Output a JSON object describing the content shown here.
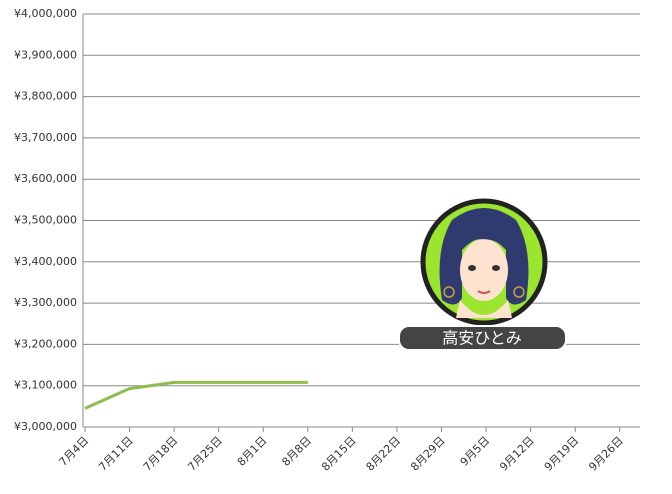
{
  "chart_data": {
    "type": "line",
    "categories": [
      "7月4日",
      "7月11日",
      "7月18日",
      "7月25日",
      "8月1日",
      "8月8日",
      "8月15日",
      "8月22日",
      "8月29日",
      "9月5日",
      "9月12日",
      "9月19日",
      "9月26日"
    ],
    "values": [
      3045000,
      3093000,
      3108000,
      3108000,
      3108000,
      3108000,
      null,
      null,
      null,
      null,
      null,
      null,
      null
    ],
    "color": "#8fbc4f",
    "ylim": [
      3000000,
      4000000
    ],
    "yticks": [
      {
        "value": 3000000,
        "label": "¥3,000,000"
      },
      {
        "value": 3100000,
        "label": "¥3,100,000"
      },
      {
        "value": 3200000,
        "label": "¥3,200,000"
      },
      {
        "value": 3300000,
        "label": "¥3,300,000"
      },
      {
        "value": 3400000,
        "label": "¥3,400,000"
      },
      {
        "value": 3500000,
        "label": "¥3,500,000"
      },
      {
        "value": 3600000,
        "label": "¥3,600,000"
      },
      {
        "value": 3700000,
        "label": "¥3,700,000"
      },
      {
        "value": 3800000,
        "label": "¥3,800,000"
      },
      {
        "value": 3900000,
        "label": "¥3,900,000"
      },
      {
        "value": 4000000,
        "label": "¥4,000,000"
      }
    ],
    "grid": true
  },
  "badge": {
    "name": "高安ひとみ"
  }
}
